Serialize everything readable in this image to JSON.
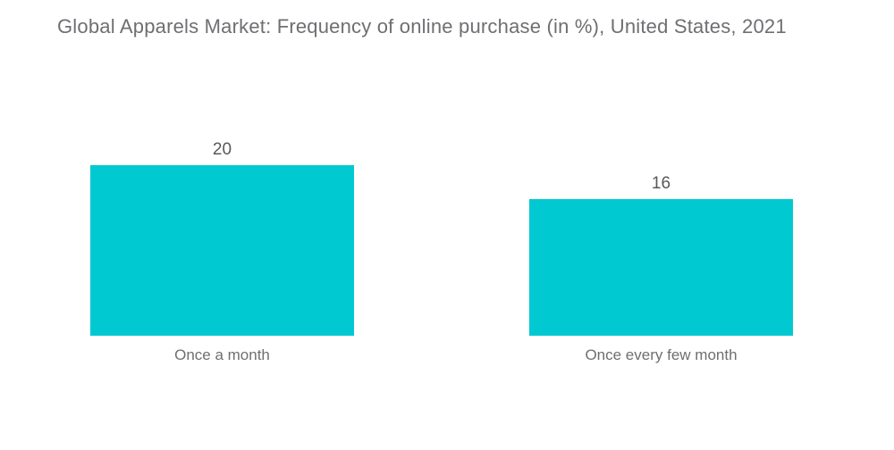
{
  "chart_data": {
    "type": "bar",
    "title": "Global Apparels Market: Frequency of online purchase (in %), United States, 2021",
    "categories": [
      "Once a month",
      "Once every few month"
    ],
    "values": [
      20,
      16
    ],
    "unit": "%",
    "ylim": [
      0,
      20
    ],
    "grid": false,
    "legend": "none",
    "orientation": "vertical",
    "colors": {
      "bar": "#00c9d2",
      "title_text": "#6e6f72",
      "value_text": "#58595b",
      "category_text": "#6e6f72",
      "background": "#ffffff"
    }
  }
}
